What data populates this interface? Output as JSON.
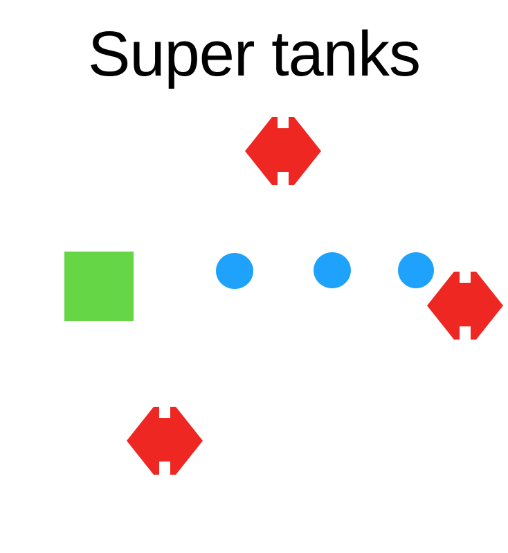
{
  "title": "Super tanks",
  "colors": {
    "background": "#ffffff",
    "title": "#000000",
    "player": "#65d645",
    "projectile": "#1fa2fb",
    "enemy": "#ee2722"
  },
  "entities": {
    "player": {
      "shape": "square",
      "icon": "player-tank"
    },
    "projectiles": [
      {
        "icon": "bullet"
      },
      {
        "icon": "bullet"
      },
      {
        "icon": "bullet"
      }
    ],
    "enemies": [
      {
        "icon": "enemy-tank"
      },
      {
        "icon": "enemy-tank"
      },
      {
        "icon": "enemy-tank"
      }
    ]
  }
}
